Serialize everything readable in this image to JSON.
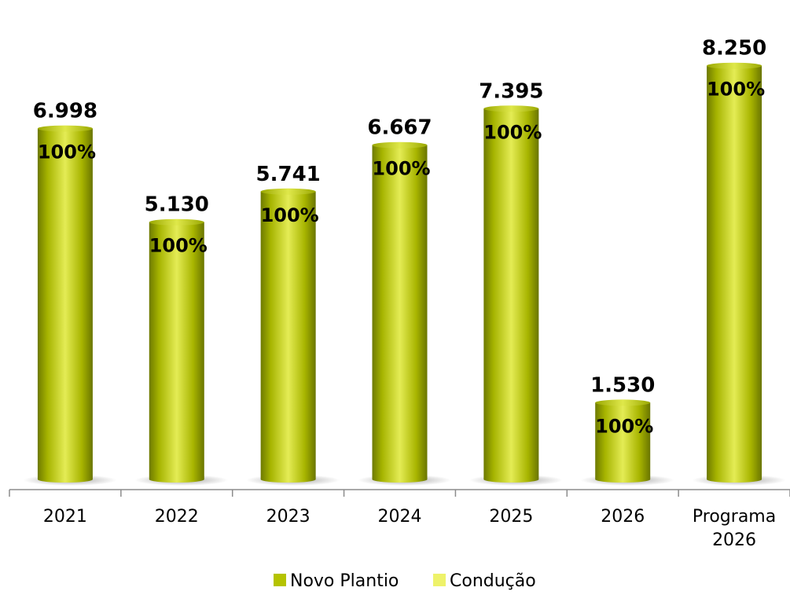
{
  "chart_data": {
    "type": "bar",
    "categories": [
      "2021",
      "2022",
      "2023",
      "2024",
      "2025",
      "2026",
      [
        "Programa",
        "2026"
      ]
    ],
    "series": [
      {
        "name": "Novo Plantio",
        "values": [
          6998,
          5130,
          5741,
          6667,
          7395,
          1530,
          8250
        ],
        "value_labels": [
          "6.998",
          "5.130",
          "5.741",
          "6.667",
          "7.395",
          "1.530",
          "8.250"
        ],
        "share_labels": [
          "100%",
          "100%",
          "100%",
          "100%",
          "100%",
          "100%",
          "100%"
        ],
        "color": "#b5c300"
      },
      {
        "name": "Condução",
        "values": [
          0,
          0,
          0,
          0,
          0,
          0,
          0
        ],
        "color": "#eef26a"
      }
    ],
    "ylim": [
      0,
      8700
    ],
    "grid": false,
    "legend": "bottom"
  }
}
